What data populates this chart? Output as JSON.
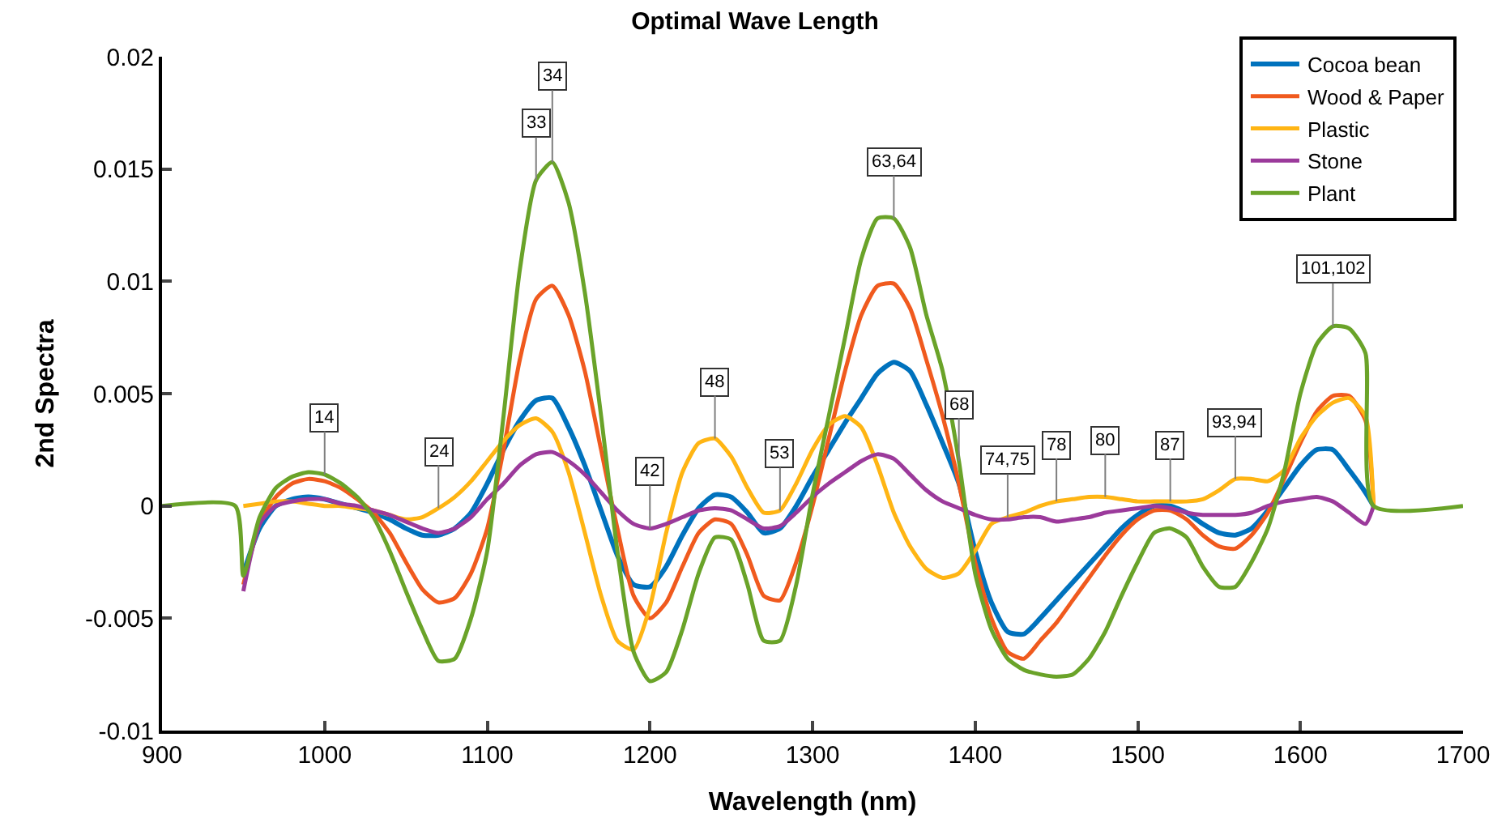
{
  "chart_data": {
    "type": "line",
    "title": "Optimal Wave Length",
    "xlabel": "Wavelength (nm)",
    "ylabel": "2nd Spectra",
    "x": [
      900,
      945,
      950,
      960,
      970,
      980,
      990,
      1000,
      1010,
      1020,
      1030,
      1040,
      1050,
      1060,
      1070,
      1080,
      1090,
      1100,
      1110,
      1120,
      1130,
      1140,
      1150,
      1160,
      1170,
      1180,
      1190,
      1200,
      1210,
      1220,
      1230,
      1240,
      1250,
      1260,
      1270,
      1280,
      1290,
      1300,
      1310,
      1320,
      1330,
      1340,
      1350,
      1360,
      1370,
      1380,
      1390,
      1400,
      1410,
      1420,
      1430,
      1440,
      1450,
      1460,
      1470,
      1480,
      1490,
      1500,
      1510,
      1520,
      1530,
      1540,
      1550,
      1560,
      1570,
      1580,
      1590,
      1600,
      1610,
      1620,
      1630,
      1640,
      1645,
      1700
    ],
    "series": [
      {
        "name": "Cocoa bean",
        "color": "#0072bd",
        "values": [
          null,
          null,
          -0.003,
          -0.001,
          0,
          0.0003,
          0.0004,
          0.0003,
          0.0001,
          -0.0001,
          -0.0003,
          -0.0006,
          -0.001,
          -0.0013,
          -0.0013,
          -0.001,
          -0.0003,
          0.001,
          0.0025,
          0.0038,
          0.0047,
          0.0048,
          0.0035,
          0.0018,
          -0.0002,
          -0.0022,
          -0.0035,
          -0.0036,
          -0.0027,
          -0.0013,
          -0.0001,
          0.0005,
          0.0004,
          -0.0003,
          -0.0012,
          -0.001,
          0,
          0.0013,
          0.0025,
          0.0037,
          0.0048,
          0.0059,
          0.0064,
          0.006,
          0.0045,
          0.0028,
          0.001,
          -0.002,
          -0.0043,
          -0.0056,
          -0.0057,
          -0.005,
          -0.0042,
          -0.0034,
          -0.0026,
          -0.0018,
          -0.001,
          -0.0004,
          0,
          0,
          -0.0003,
          -0.0008,
          -0.0012,
          -0.0013,
          -0.001,
          -0.0002,
          0.0008,
          0.0018,
          0.0025,
          0.0025,
          0.0016,
          0.0006,
          0,
          null
        ]
      },
      {
        "name": "Wood & Paper",
        "color": "#f05a1e",
        "values": [
          null,
          null,
          -0.0035,
          -0.0008,
          0.0004,
          0.001,
          0.0012,
          0.0011,
          0.0008,
          0.0003,
          -0.0003,
          -0.0012,
          -0.0025,
          -0.0037,
          -0.0043,
          -0.0041,
          -0.003,
          -0.001,
          0.0025,
          0.0065,
          0.0092,
          0.0098,
          0.0085,
          0.006,
          0.0025,
          -0.001,
          -0.004,
          -0.005,
          -0.0043,
          -0.0027,
          -0.0012,
          -0.0006,
          -0.0008,
          -0.0022,
          -0.004,
          -0.0042,
          -0.0025,
          0,
          0.003,
          0.006,
          0.0085,
          0.0098,
          0.0099,
          0.0088,
          0.0065,
          0.004,
          0.001,
          -0.0025,
          -0.005,
          -0.0065,
          -0.0068,
          -0.006,
          -0.0052,
          -0.0042,
          -0.0032,
          -0.0022,
          -0.0013,
          -0.0006,
          -0.0002,
          -0.0002,
          -0.0006,
          -0.0013,
          -0.0018,
          -0.0019,
          -0.0013,
          -0.0003,
          0.0012,
          0.0028,
          0.0042,
          0.0049,
          0.0049,
          0.0038,
          0,
          null
        ]
      },
      {
        "name": "Plastic",
        "color": "#ffb514",
        "values": [
          null,
          null,
          0,
          0.0001,
          0.0002,
          0.0002,
          0.0001,
          0,
          0,
          -0.0001,
          -0.0002,
          -0.0004,
          -0.0006,
          -0.0005,
          -0.0001,
          0.0004,
          0.0011,
          0.002,
          0.0029,
          0.0036,
          0.0039,
          0.0033,
          0.0015,
          -0.0012,
          -0.004,
          -0.006,
          -0.0064,
          -0.0045,
          -0.0012,
          0.0015,
          0.0028,
          0.003,
          0.0022,
          0.0008,
          -0.0003,
          -0.0002,
          0.001,
          0.0025,
          0.0036,
          0.004,
          0.0035,
          0.0018,
          -0.0003,
          -0.0018,
          -0.0028,
          -0.0032,
          -0.003,
          -0.002,
          -0.0008,
          -0.0005,
          -0.0003,
          0,
          0.0002,
          0.0003,
          0.0004,
          0.0004,
          0.0003,
          0.0002,
          0.0002,
          0.0002,
          0.0002,
          0.0003,
          0.0007,
          0.0012,
          0.0012,
          0.0011,
          0.0016,
          0.003,
          0.004,
          0.0046,
          0.0048,
          0.004,
          0,
          null
        ]
      },
      {
        "name": "Stone",
        "color": "#9b3a9b",
        "values": [
          null,
          null,
          -0.0038,
          -0.0008,
          0,
          0.0002,
          0.0003,
          0.0003,
          0.0001,
          0,
          -0.0002,
          -0.0004,
          -0.0007,
          -0.001,
          -0.0012,
          -0.001,
          -0.0005,
          0.0003,
          0.001,
          0.0018,
          0.0023,
          0.0024,
          0.002,
          0.0014,
          0.0006,
          -0.0002,
          -0.0008,
          -0.001,
          -0.0008,
          -0.0005,
          -0.0002,
          -0.0001,
          -0.0002,
          -0.0006,
          -0.001,
          -0.0009,
          -0.0003,
          0.0004,
          0.001,
          0.0015,
          0.002,
          0.0023,
          0.0021,
          0.0014,
          0.0007,
          0.0002,
          -0.0001,
          -0.0004,
          -0.0006,
          -0.0006,
          -0.0005,
          -0.0005,
          -0.0007,
          -0.0006,
          -0.0005,
          -0.0003,
          -0.0002,
          -0.0001,
          0,
          -0.0001,
          -0.0003,
          -0.0004,
          -0.0004,
          -0.0004,
          -0.0003,
          0,
          0.0002,
          0.0003,
          0.0004,
          0.0002,
          -0.0003,
          -0.0008,
          0,
          null
        ]
      },
      {
        "name": "Plant",
        "color": "#6aa329",
        "values": [
          0,
          0,
          -0.0031,
          -0.0005,
          0.0008,
          0.0013,
          0.0015,
          0.0014,
          0.001,
          0.0004,
          -0.0005,
          -0.002,
          -0.0038,
          -0.0055,
          -0.0069,
          -0.0068,
          -0.005,
          -0.002,
          0.004,
          0.0105,
          0.0145,
          0.0153,
          0.0135,
          0.0095,
          0.004,
          -0.002,
          -0.0065,
          -0.0078,
          -0.0074,
          -0.0055,
          -0.003,
          -0.0014,
          -0.0015,
          -0.0035,
          -0.006,
          -0.006,
          -0.0035,
          0.0005,
          0.004,
          0.0075,
          0.011,
          0.0128,
          0.0128,
          0.0115,
          0.0085,
          0.006,
          0.002,
          -0.003,
          -0.0055,
          -0.0068,
          -0.0073,
          -0.0075,
          -0.0076,
          -0.0075,
          -0.0068,
          -0.0056,
          -0.004,
          -0.0025,
          -0.0012,
          -0.001,
          -0.0014,
          -0.0027,
          -0.0036,
          -0.0036,
          -0.0025,
          -0.001,
          0.0015,
          0.005,
          0.0072,
          0.008,
          0.0079,
          0.0068,
          0,
          0
        ]
      }
    ],
    "xlim": [
      900,
      1700
    ],
    "xticks": [
      900,
      1000,
      1100,
      1200,
      1300,
      1400,
      1500,
      1600,
      1700
    ],
    "ylim": [
      -0.01,
      0.02
    ],
    "yticks": [
      -0.01,
      -0.005,
      0,
      0.005,
      0.01,
      0.015,
      0.02
    ],
    "grid": false,
    "legend": "top right",
    "marker": "none",
    "line_style": "solid",
    "annotations": [
      {
        "text": "14",
        "x": 1000,
        "y": 0.0014
      },
      {
        "text": "24",
        "x": 1070,
        "y": -0.0001
      },
      {
        "text": "33",
        "x": 1130,
        "y": 0.0145
      },
      {
        "text": "34",
        "x": 1140,
        "y": 0.0153
      },
      {
        "text": "42",
        "x": 1200,
        "y": -0.001
      },
      {
        "text": "48",
        "x": 1240,
        "y": 0.003
      },
      {
        "text": "53",
        "x": 1280,
        "y": -0.0002
      },
      {
        "text": "63,64",
        "x": 1350,
        "y": 0.0128
      },
      {
        "text": "68",
        "x": 1390,
        "y": 0.002
      },
      {
        "text": "74,75",
        "x": 1420,
        "y": -0.0005
      },
      {
        "text": "78",
        "x": 1450,
        "y": 0.0002
      },
      {
        "text": "80",
        "x": 1480,
        "y": 0.0004
      },
      {
        "text": "87",
        "x": 1520,
        "y": 0.0002
      },
      {
        "text": "93,94",
        "x": 1560,
        "y": 0.0012
      },
      {
        "text": "101,102",
        "x": 1620,
        "y": 0.008
      }
    ]
  }
}
